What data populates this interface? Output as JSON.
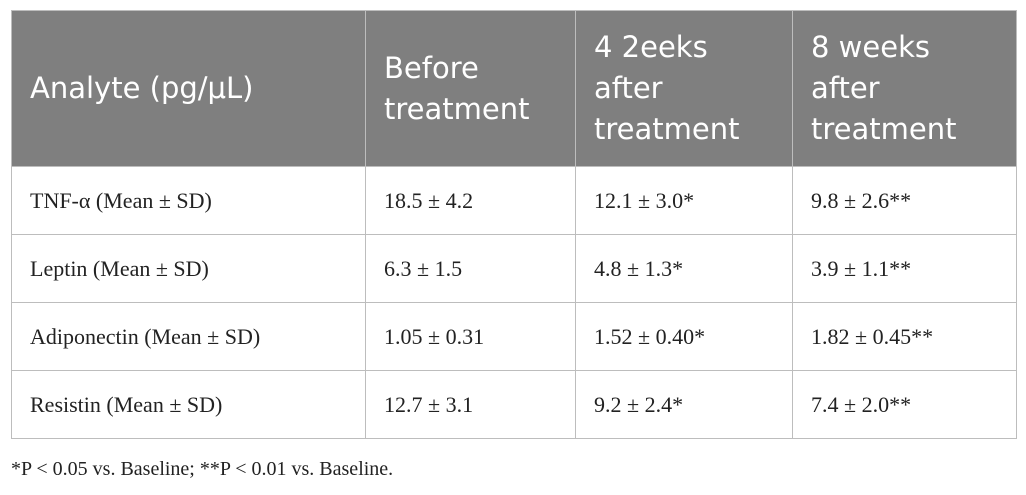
{
  "table": {
    "header": [
      "Analyte (pg/μL)",
      "Before\ntreatment",
      "4 2eeks\nafter\ntreatment",
      "8 weeks\nafter\ntreatment"
    ],
    "rows": [
      [
        "TNF-α (Mean ± SD)",
        "18.5 ± 4.2",
        "12.1 ± 3.0*",
        "9.8 ± 2.6**"
      ],
      [
        "Leptin (Mean ± SD)",
        "6.3 ± 1.5",
        "4.8 ± 1.3*",
        "3.9 ± 1.1**"
      ],
      [
        "Adiponectin (Mean ± SD)",
        "1.05 ± 0.31",
        "1.52 ± 0.40*",
        "1.82 ± 0.45**"
      ],
      [
        "Resistin (Mean ± SD)",
        "12.7 ± 3.1",
        "9.2 ± 2.4*",
        "7.4 ± 2.0**"
      ]
    ],
    "footnote": "*P < 0.05 vs. Baseline; **P < 0.01 vs. Baseline."
  }
}
